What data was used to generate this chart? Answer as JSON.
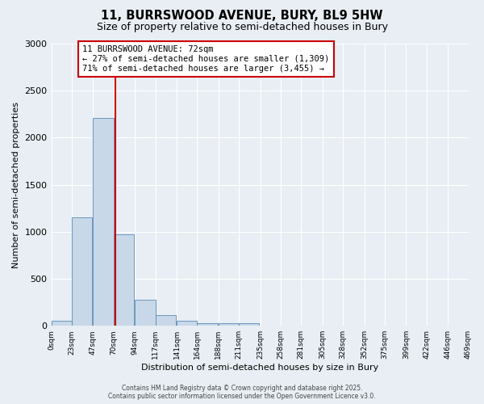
{
  "title": "11, BURRSWOOD AVENUE, BURY, BL9 5HW",
  "subtitle": "Size of property relative to semi-detached houses in Bury",
  "xlabel": "Distribution of semi-detached houses by size in Bury",
  "ylabel": "Number of semi-detached properties",
  "bin_labels": [
    "0sqm",
    "23sqm",
    "47sqm",
    "70sqm",
    "94sqm",
    "117sqm",
    "141sqm",
    "164sqm",
    "188sqm",
    "211sqm",
    "235sqm",
    "258sqm",
    "281sqm",
    "305sqm",
    "328sqm",
    "352sqm",
    "375sqm",
    "399sqm",
    "422sqm",
    "446sqm",
    "469sqm"
  ],
  "bin_edges": [
    0,
    23,
    47,
    70,
    94,
    117,
    141,
    164,
    188,
    211,
    235,
    258,
    281,
    305,
    328,
    352,
    375,
    399,
    422,
    446,
    469
  ],
  "bar_heights": [
    55,
    1150,
    2210,
    970,
    275,
    115,
    55,
    30,
    25,
    25,
    0,
    0,
    0,
    0,
    0,
    0,
    0,
    0,
    0,
    0
  ],
  "bar_color": "#c8d8e8",
  "bar_edge_color": "#5a8ab5",
  "property_value": 72,
  "property_line_color": "#cc0000",
  "annotation_text": "11 BURRSWOOD AVENUE: 72sqm\n← 27% of semi-detached houses are smaller (1,309)\n71% of semi-detached houses are larger (3,455) →",
  "annotation_box_color": "#ffffff",
  "annotation_box_edge_color": "#cc0000",
  "ylim": [
    0,
    3000
  ],
  "yticks": [
    0,
    500,
    1000,
    1500,
    2000,
    2500,
    3000
  ],
  "footer_line1": "Contains HM Land Registry data © Crown copyright and database right 2025.",
  "footer_line2": "Contains public sector information licensed under the Open Government Licence v3.0.",
  "background_color": "#e8eef4",
  "grid_color": "#ffffff"
}
